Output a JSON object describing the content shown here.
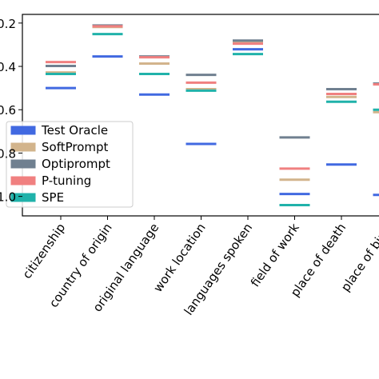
{
  "chart_data": {
    "type": "dash",
    "categories": [
      "citizenship",
      "country of origin",
      "original language",
      "work location",
      "languages spoken",
      "field of work",
      "place of death",
      "place of birth"
    ],
    "series": [
      {
        "name": "Test Oracle",
        "color": "#4169e1",
        "values": [
          0.5,
          0.354,
          0.53,
          0.758,
          0.321,
          0.989,
          0.853,
          0.993
        ]
      },
      {
        "name": "SoftPrompt",
        "color": "#d2b48c",
        "values": [
          0.428,
          0.218,
          0.387,
          0.505,
          0.288,
          0.923,
          0.541,
          0.611
        ]
      },
      {
        "name": "Optiprompt",
        "color": "#708090",
        "values": [
          0.398,
          0.211,
          0.354,
          0.439,
          0.281,
          0.728,
          0.505,
          0.479
        ]
      },
      {
        "name": "P-tuning",
        "color": "#f08080",
        "values": [
          0.38,
          0.215,
          0.358,
          0.475,
          0.295,
          0.872,
          0.527,
          0.483
        ]
      },
      {
        "name": "SPE",
        "color": "#20b2aa",
        "values": [
          0.435,
          0.251,
          0.435,
          0.512,
          0.343,
          1.04,
          0.563,
          0.6
        ]
      }
    ],
    "ylim": [
      1.09,
      0.16
    ],
    "yticks": [
      0.2,
      0.4,
      0.6,
      0.8,
      {
        "value": 1.0,
        "label": "1.0"
      }
    ],
    "legend": "lower left"
  }
}
